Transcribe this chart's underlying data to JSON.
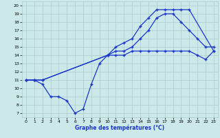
{
  "xlabel": "Graphe des températures (°C)",
  "xlim": [
    -0.5,
    23.5
  ],
  "ylim": [
    6.5,
    20.5
  ],
  "xticks": [
    0,
    1,
    2,
    3,
    4,
    5,
    6,
    7,
    8,
    9,
    10,
    11,
    12,
    13,
    14,
    15,
    16,
    17,
    18,
    19,
    20,
    21,
    22,
    23
  ],
  "yticks": [
    7,
    8,
    9,
    10,
    11,
    12,
    13,
    14,
    15,
    16,
    17,
    18,
    19,
    20
  ],
  "bg_color": "#cce8e8",
  "grid_color": "#aacccc",
  "line_color": "#1a35c8",
  "line1_x": [
    0,
    1,
    2,
    10,
    11,
    12,
    13,
    14,
    15,
    16,
    17,
    18,
    19,
    20,
    23
  ],
  "line1_y": [
    11,
    11,
    11,
    14,
    15,
    15.5,
    16,
    17.5,
    18.5,
    19.5,
    19.5,
    19.5,
    19.5,
    19.5,
    14.5
  ],
  "line2_x": [
    0,
    1,
    2,
    10,
    11,
    12,
    13,
    14,
    15,
    16,
    17,
    18,
    19,
    20,
    21,
    22,
    23
  ],
  "line2_y": [
    11,
    11,
    11,
    14,
    14.5,
    14.5,
    15,
    16,
    17,
    18.5,
    19,
    19,
    18,
    17,
    16,
    15,
    15
  ],
  "line3_x": [
    0,
    1,
    2,
    3,
    4,
    5,
    6,
    7,
    8,
    9,
    10,
    11,
    12,
    13,
    14,
    15,
    16,
    17,
    18,
    19,
    20,
    21,
    22,
    23
  ],
  "line3_y": [
    11,
    11,
    10.5,
    9,
    9,
    8.5,
    7,
    7.5,
    10.5,
    13,
    14,
    14,
    14,
    14.5,
    14.5,
    14.5,
    14.5,
    14.5,
    14.5,
    14.5,
    14.5,
    14,
    13.5,
    14.5
  ],
  "marker": "+",
  "markersize": 3.5,
  "linewidth": 0.9
}
